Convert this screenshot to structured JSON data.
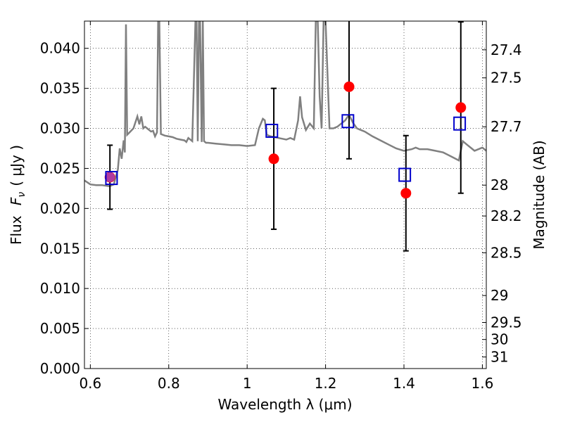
{
  "chart_data": {
    "type": "scatter",
    "xlabel": "Wavelength  λ (μm)",
    "ylabel_text": "Flux",
    "ylabel_math": "F",
    "ylabel_math_sub": "ν",
    "ylabel_unit": "( μJy )",
    "y2label": "Magnitude (AB)",
    "xlim": [
      0.585,
      1.61
    ],
    "ylim": [
      0.0,
      0.0434
    ],
    "grid": true,
    "x_ticks": [
      {
        "value": 0.6,
        "label": "0.6"
      },
      {
        "value": 0.8,
        "label": "0.8"
      },
      {
        "value": 1.0,
        "label": "1"
      },
      {
        "value": 1.2,
        "label": "1.2"
      },
      {
        "value": 1.4,
        "label": "1.4"
      },
      {
        "value": 1.6,
        "label": "1.6"
      }
    ],
    "y_ticks": [
      {
        "value": 0.0,
        "label": "0.000"
      },
      {
        "value": 0.005,
        "label": "0.005"
      },
      {
        "value": 0.01,
        "label": "0.010"
      },
      {
        "value": 0.015,
        "label": "0.015"
      },
      {
        "value": 0.02,
        "label": "0.020"
      },
      {
        "value": 0.025,
        "label": "0.025"
      },
      {
        "value": 0.03,
        "label": "0.030"
      },
      {
        "value": 0.035,
        "label": "0.035"
      },
      {
        "value": 0.04,
        "label": "0.040"
      }
    ],
    "y2_ticks": [
      {
        "value": 27.4,
        "label": "27.4"
      },
      {
        "value": 27.5,
        "label": "27.5"
      },
      {
        "value": 27.7,
        "label": "27.7"
      },
      {
        "value": 28.0,
        "label": "28"
      },
      {
        "value": 28.2,
        "label": "28.2"
      },
      {
        "value": 28.5,
        "label": "28.5"
      },
      {
        "value": 29.0,
        "label": "29"
      },
      {
        "value": 29.5,
        "label": "29.5"
      },
      {
        "value": 30.0,
        "label": "30"
      },
      {
        "value": 31.0,
        "label": "31"
      }
    ],
    "colors": {
      "model": "#808080",
      "observed": "#ff0000",
      "model_points": "#0000cc",
      "errorbars": "#000000",
      "overlap": "#b03aa0"
    },
    "series": [
      {
        "kind": "model_spectrum",
        "x": [
          0.585,
          0.6,
          0.615,
          0.63,
          0.645,
          0.65,
          0.66,
          0.665,
          0.67,
          0.675,
          0.68,
          0.685,
          0.688,
          0.691,
          0.694,
          0.7,
          0.71,
          0.72,
          0.725,
          0.73,
          0.735,
          0.74,
          0.745,
          0.75,
          0.755,
          0.76,
          0.765,
          0.77,
          0.773,
          0.776,
          0.78,
          0.79,
          0.8,
          0.81,
          0.82,
          0.83,
          0.84,
          0.845,
          0.85,
          0.86,
          0.868,
          0.871,
          0.874,
          0.877,
          0.88,
          0.884,
          0.887,
          0.89,
          0.895,
          0.9,
          0.92,
          0.94,
          0.96,
          0.98,
          1.0,
          1.02,
          1.03,
          1.04,
          1.045,
          1.05,
          1.06,
          1.07,
          1.08,
          1.09,
          1.1,
          1.11,
          1.12,
          1.13,
          1.135,
          1.14,
          1.15,
          1.16,
          1.17,
          1.175,
          1.18,
          1.185,
          1.19,
          1.195,
          1.2,
          1.21,
          1.22,
          1.23,
          1.24,
          1.25,
          1.26,
          1.27,
          1.28,
          1.29,
          1.3,
          1.32,
          1.34,
          1.36,
          1.38,
          1.4,
          1.42,
          1.43,
          1.44,
          1.46,
          1.48,
          1.5,
          1.52,
          1.54,
          1.55,
          1.56,
          1.58,
          1.6,
          1.61
        ],
        "y": [
          0.0235,
          0.023,
          0.0229,
          0.0229,
          0.0228,
          0.0228,
          0.023,
          0.024,
          0.0248,
          0.0275,
          0.0262,
          0.0285,
          0.027,
          0.043,
          0.0292,
          0.0295,
          0.03,
          0.0315,
          0.0305,
          0.0315,
          0.03,
          0.0302,
          0.03,
          0.0298,
          0.0296,
          0.0297,
          0.029,
          0.0295,
          0.0434,
          0.0434,
          0.0293,
          0.0291,
          0.029,
          0.0289,
          0.0287,
          0.0286,
          0.0285,
          0.0283,
          0.0288,
          0.0284,
          0.0434,
          0.0434,
          0.0284,
          0.0434,
          0.0434,
          0.0283,
          0.0434,
          0.0284,
          0.0282,
          0.0282,
          0.0281,
          0.028,
          0.0279,
          0.0279,
          0.0278,
          0.0279,
          0.03,
          0.0312,
          0.031,
          0.0292,
          0.029,
          0.0289,
          0.0288,
          0.0287,
          0.0286,
          0.0288,
          0.0286,
          0.031,
          0.034,
          0.0314,
          0.0298,
          0.0306,
          0.03,
          0.0434,
          0.0434,
          0.034,
          0.03,
          0.0434,
          0.0434,
          0.03,
          0.03,
          0.0302,
          0.0306,
          0.031,
          0.0317,
          0.0307,
          0.03,
          0.0298,
          0.0296,
          0.029,
          0.0285,
          0.028,
          0.0275,
          0.0272,
          0.0274,
          0.0276,
          0.0274,
          0.0274,
          0.0272,
          0.027,
          0.0265,
          0.026,
          0.0284,
          0.028,
          0.0272,
          0.0276,
          0.0272
        ]
      },
      {
        "kind": "observed",
        "marker": "filled-circle",
        "points": [
          {
            "x": 0.65,
            "y": 0.0239,
            "err": 0.004
          },
          {
            "x": 1.068,
            "y": 0.0262,
            "err": 0.0088
          },
          {
            "x": 1.26,
            "y": 0.0352,
            "err": 0.009
          },
          {
            "x": 1.405,
            "y": 0.0219,
            "err": 0.0072
          },
          {
            "x": 1.545,
            "y": 0.0326,
            "err": 0.0107
          }
        ]
      },
      {
        "kind": "model_photometry",
        "marker": "open-square",
        "points": [
          {
            "x": 0.654,
            "y": 0.0238
          },
          {
            "x": 1.063,
            "y": 0.0297
          },
          {
            "x": 1.257,
            "y": 0.0309
          },
          {
            "x": 1.402,
            "y": 0.0242
          },
          {
            "x": 1.542,
            "y": 0.0306
          }
        ]
      }
    ]
  }
}
